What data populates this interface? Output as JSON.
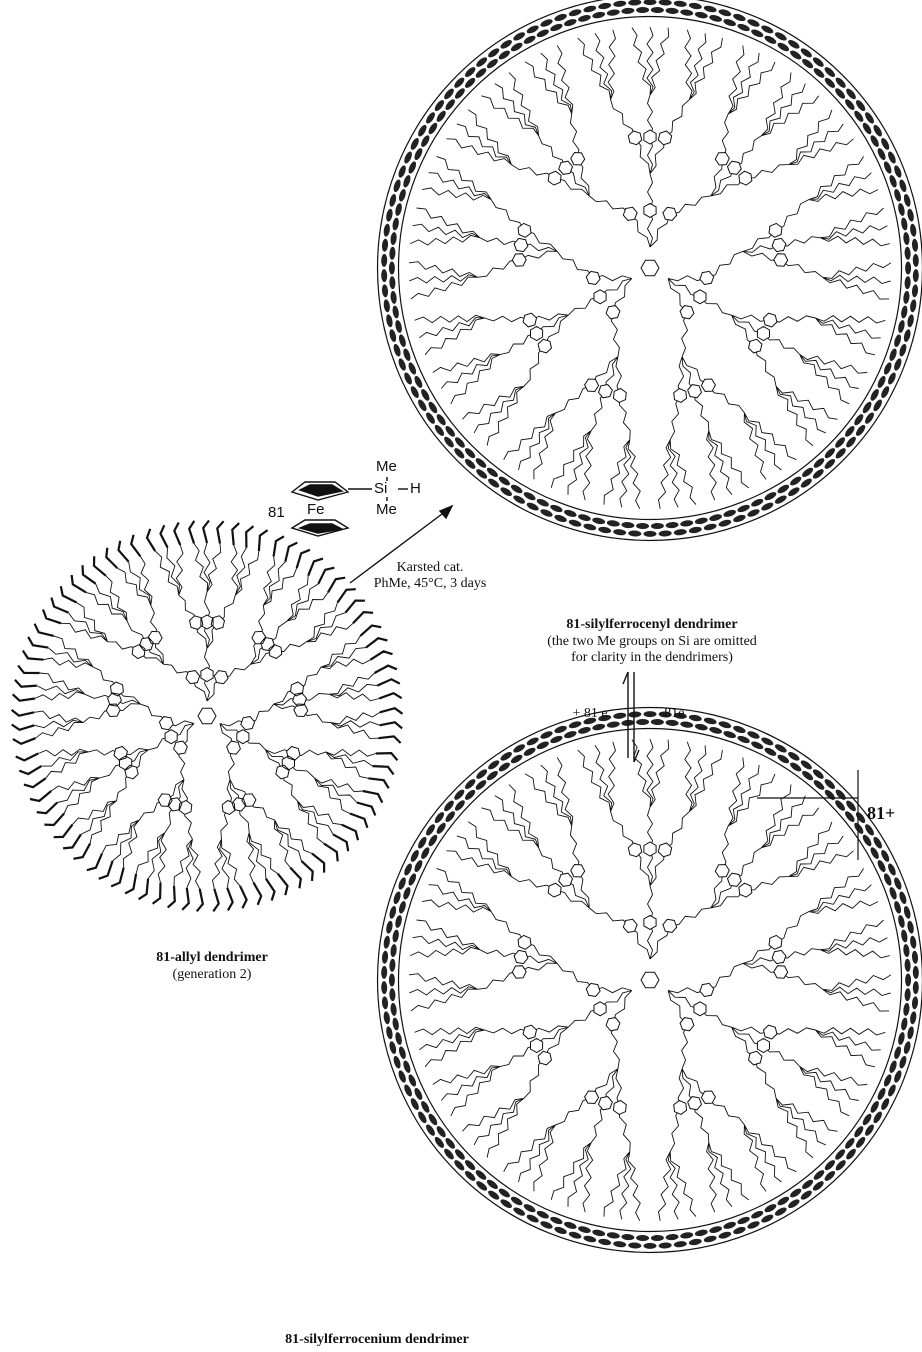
{
  "reagent": {
    "count": "81",
    "fe": "Fe",
    "si": "Si",
    "h": "H",
    "me_top": "Me",
    "me_bottom": "Me"
  },
  "conditions": [
    "Karsted cat.",
    "PhMe, 45°C, 3 days"
  ],
  "product": {
    "title": "81-silylferrocenyl dendrimer",
    "note": [
      "(the two Me groups on Si are omitted",
      "for clarity in the dendrimers)"
    ]
  },
  "equilibrium": {
    "forward": "+ 81 e",
    "reverse": "-81e"
  },
  "charge": "81+",
  "start": {
    "title": "81-allyl dendrimer",
    "note": "(generation 2)"
  },
  "oxidized": {
    "title": "81-silylferrocenium dendrimer"
  }
}
